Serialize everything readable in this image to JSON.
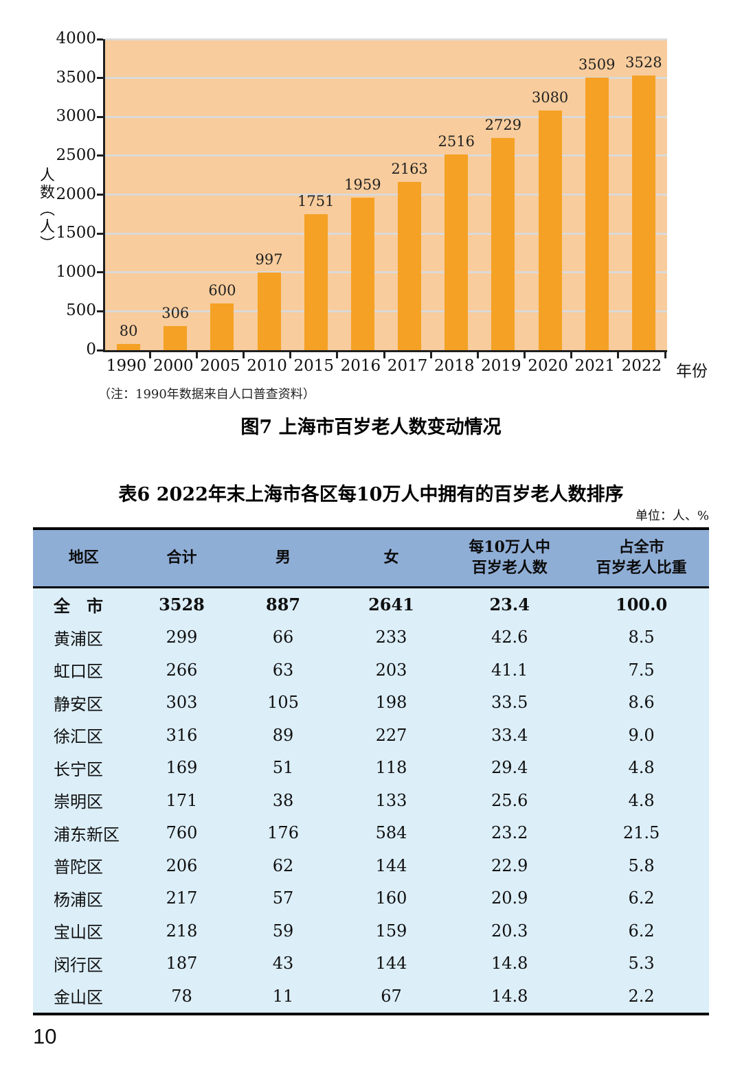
{
  "page": {
    "number": "10"
  },
  "figure": {
    "note": "（注：1990年数据来自人口普查资料）",
    "title": "图7  上海市百岁老人数变动情况"
  },
  "chart_data": {
    "type": "bar",
    "categories": [
      "1990",
      "2000",
      "2005",
      "2010",
      "2015",
      "2016",
      "2017",
      "2018",
      "2019",
      "2020",
      "2021",
      "2022"
    ],
    "values": [
      80,
      306,
      600,
      997,
      1751,
      1959,
      2163,
      2516,
      2729,
      3080,
      3509,
      3528
    ],
    "title": "图7  上海市百岁老人数变动情况",
    "xlabel": "年份",
    "ylabel": "人数（人）",
    "ylim": [
      0,
      4000
    ],
    "ytick_step": 500,
    "grid": true,
    "legend": "none",
    "colors": {
      "bar": "#F5A125",
      "plot_bg": "#F8CC9C",
      "gridline": "#DADADA",
      "axis": "#1F1F1F"
    }
  },
  "table": {
    "title": "表6  2022年末上海市各区每10万人中拥有的百岁老人数排序",
    "unit": "单位：人、%",
    "headers": [
      "地区",
      "合计",
      "男",
      "女",
      "每10万人中\n百岁老人数",
      "占全市\n百岁老人比重"
    ],
    "colors": {
      "header_bg": "#8FAED6",
      "body_bg": "#DCEEF8"
    },
    "rows": [
      {
        "region": "全　市",
        "total": "3528",
        "male": "887",
        "female": "2641",
        "per100k": "23.4",
        "share": "100.0",
        "bold": true
      },
      {
        "region": "黄浦区",
        "total": "299",
        "male": "66",
        "female": "233",
        "per100k": "42.6",
        "share": "8.5",
        "bold": false
      },
      {
        "region": "虹口区",
        "total": "266",
        "male": "63",
        "female": "203",
        "per100k": "41.1",
        "share": "7.5",
        "bold": false
      },
      {
        "region": "静安区",
        "total": "303",
        "male": "105",
        "female": "198",
        "per100k": "33.5",
        "share": "8.6",
        "bold": false
      },
      {
        "region": "徐汇区",
        "total": "316",
        "male": "89",
        "female": "227",
        "per100k": "33.4",
        "share": "9.0",
        "bold": false
      },
      {
        "region": "长宁区",
        "total": "169",
        "male": "51",
        "female": "118",
        "per100k": "29.4",
        "share": "4.8",
        "bold": false
      },
      {
        "region": "崇明区",
        "total": "171",
        "male": "38",
        "female": "133",
        "per100k": "25.6",
        "share": "4.8",
        "bold": false
      },
      {
        "region": "浦东新区",
        "total": "760",
        "male": "176",
        "female": "584",
        "per100k": "23.2",
        "share": "21.5",
        "bold": false
      },
      {
        "region": "普陀区",
        "total": "206",
        "male": "62",
        "female": "144",
        "per100k": "22.9",
        "share": "5.8",
        "bold": false
      },
      {
        "region": "杨浦区",
        "total": "217",
        "male": "57",
        "female": "160",
        "per100k": "20.9",
        "share": "6.2",
        "bold": false
      },
      {
        "region": "宝山区",
        "total": "218",
        "male": "59",
        "female": "159",
        "per100k": "20.3",
        "share": "6.2",
        "bold": false
      },
      {
        "region": "闵行区",
        "total": "187",
        "male": "43",
        "female": "144",
        "per100k": "14.8",
        "share": "5.3",
        "bold": false
      },
      {
        "region": "金山区",
        "total": "78",
        "male": "11",
        "female": "67",
        "per100k": "14.8",
        "share": "2.2",
        "bold": false
      }
    ]
  }
}
